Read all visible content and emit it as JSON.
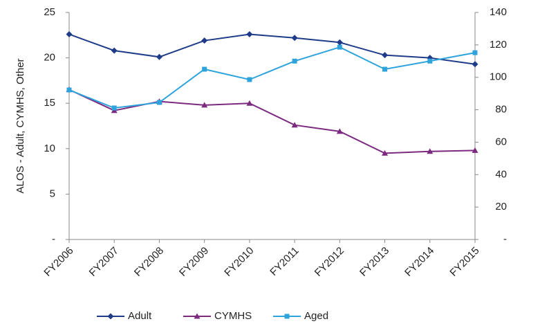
{
  "chart_data": {
    "type": "line",
    "y_label": "ALOS - Adult, CYMHS, Other",
    "categories": [
      "FY2006",
      "FY2007",
      "FY2008",
      "FY2009",
      "FY2010",
      "FY2011",
      "FY2012",
      "FY2013",
      "FY2014",
      "FY2015"
    ],
    "series": [
      {
        "name": "Adult",
        "color": "#1f3c88",
        "marker": "diamond",
        "values": [
          22.6,
          20.8,
          20.1,
          21.9,
          22.6,
          22.2,
          21.7,
          20.3,
          20.0,
          19.3
        ]
      },
      {
        "name": "CYMHS",
        "color": "#7b2a7f",
        "marker": "triangle",
        "values": [
          16.5,
          14.2,
          15.2,
          14.8,
          15.0,
          12.6,
          11.9,
          9.5,
          9.7,
          9.8
        ]
      },
      {
        "name": "Aged",
        "color": "#2ea3dc",
        "marker": "square",
        "axis": "y2",
        "values": [
          92.2,
          81.1,
          84.5,
          105,
          98.6,
          110,
          118.6,
          105,
          110,
          115.2
        ]
      }
    ],
    "ylim": [
      0,
      25
    ],
    "yticks": [
      {
        "value": 0,
        "label": "-"
      },
      5,
      10,
      15,
      20,
      25
    ],
    "y2lim": [
      0,
      140
    ],
    "y2ticks": [
      {
        "value": 0,
        "label": "-"
      },
      20,
      40,
      60,
      80,
      100,
      120,
      140
    ],
    "grid": false,
    "legend": "bottom"
  }
}
